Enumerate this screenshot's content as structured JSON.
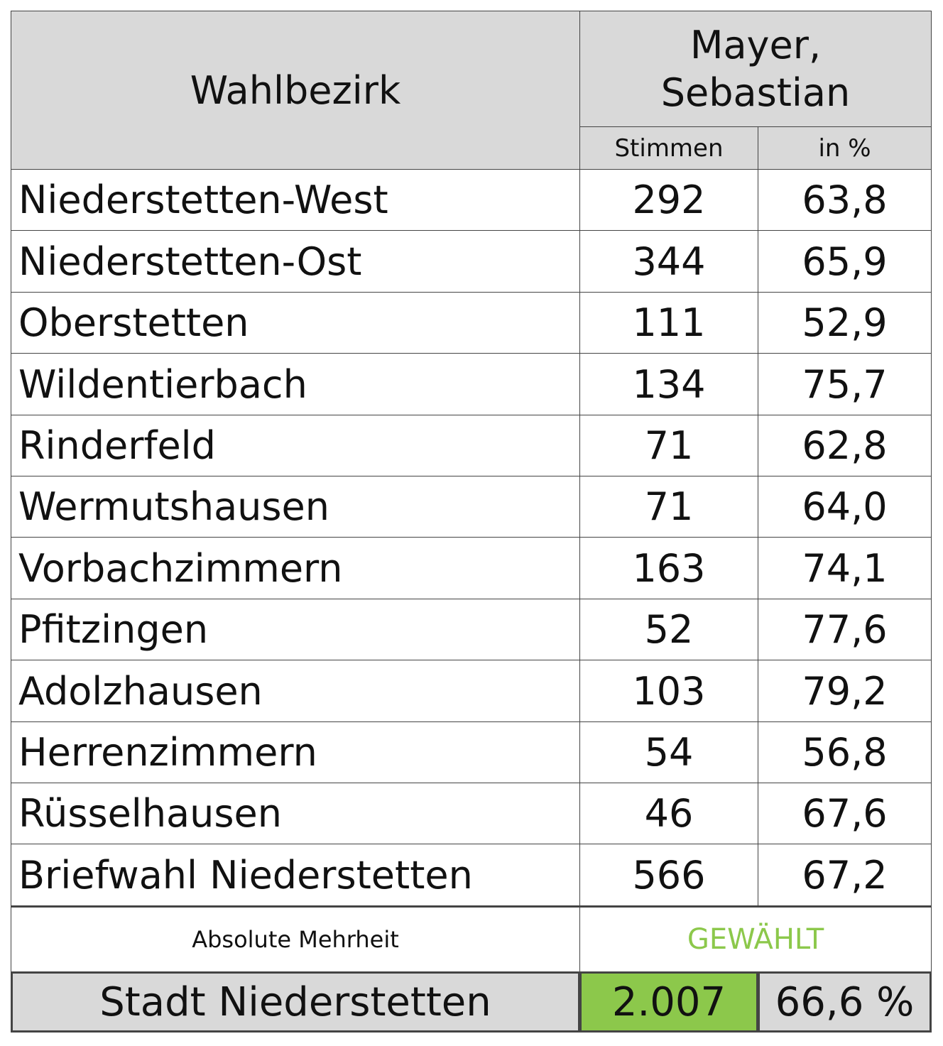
{
  "header": {
    "district": "Wahlbezirk",
    "candidate": [
      "Mayer,",
      "Sebastian"
    ],
    "votes": "Stimmen",
    "percent": "in %"
  },
  "table": {
    "rows": [
      [
        "Niederstetten-West",
        "292",
        "63,8"
      ],
      [
        "Niederstetten-Ost",
        "344",
        "65,9"
      ],
      [
        "Oberstetten",
        "111",
        "52,9"
      ],
      [
        "Wildentierbach",
        "134",
        "75,7"
      ],
      [
        "Rinderfeld",
        "71",
        "62,8"
      ],
      [
        "Wermutshausen",
        "71",
        "64,0"
      ],
      [
        "Vorbachzimmern",
        "163",
        "74,1"
      ],
      [
        "Pfitzingen",
        "52",
        "77,6"
      ],
      [
        "Adolzhausen",
        "103",
        "79,2"
      ],
      [
        "Herrenzimmern",
        "54",
        "56,8"
      ],
      [
        "Rüsselhausen",
        "46",
        "67,6"
      ],
      [
        "Briefwahl Niederstetten",
        "566",
        "67,2"
      ]
    ]
  },
  "footer": {
    "majority": "Absolute Mehrheit",
    "status": "GEWÄHLT",
    "total": {
      "label": "Stadt Niederstetten",
      "votes": "2.007",
      "percent": "66,6 %"
    }
  }
}
